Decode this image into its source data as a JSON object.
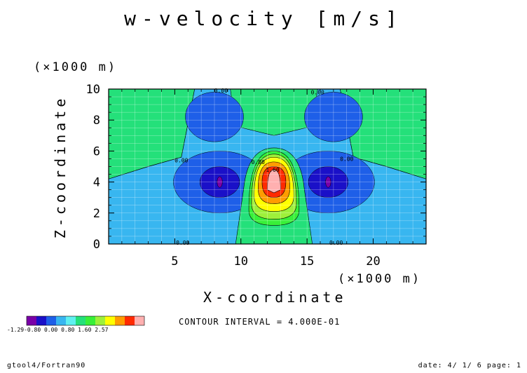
{
  "title": "w-velocity [m/s]",
  "y_unit": "(×1000 m)",
  "x_unit": "(×1000 m)",
  "contour_interval": "CONTOUR INTERVAL = 4.000E-01",
  "footer_left": "gtool4/Fortran90",
  "footer_right": "date: 4/ 1/ 6 page: 1",
  "legend_ticks": "-1.29-0.80 0.00 0.80 1.60    2.57",
  "chart_data": {
    "type": "heatmap",
    "subtype": "filled-contour",
    "title": "w-velocity [m/s]",
    "xlabel": "X-coordinate",
    "ylabel": "Z-coordinate",
    "xlim": [
      0,
      24
    ],
    "ylim": [
      0,
      10
    ],
    "x_ticks": [
      5,
      10,
      15,
      20
    ],
    "y_ticks": [
      0,
      2,
      4,
      6,
      8,
      10
    ],
    "x_tick_labels": [
      "5",
      "10",
      "15",
      "20"
    ],
    "y_tick_labels": [
      "0",
      "2",
      "4",
      "6",
      "8",
      "10"
    ],
    "grid": true,
    "contour_interval": 0.4,
    "legend": {
      "position": "bottom-left",
      "colors": [
        "#7a00a8",
        "#1a10c8",
        "#1e5fe8",
        "#38b6f0",
        "#5ff0f0",
        "#24e07a",
        "#38ef38",
        "#9ef03a",
        "#ffff00",
        "#ff9c00",
        "#ff2a00",
        "#ffb0b0"
      ],
      "labels": [
        "-1.29",
        "-0.80",
        "0.00",
        "0.80",
        "1.60",
        "2.57"
      ]
    },
    "contour_labels": [
      {
        "x": 5.5,
        "y": 5.4,
        "text": "0.00"
      },
      {
        "x": 8.5,
        "y": 9.9,
        "text": "0.00"
      },
      {
        "x": 15.8,
        "y": 9.8,
        "text": "0.00"
      },
      {
        "x": 18.0,
        "y": 5.5,
        "text": "0.00"
      },
      {
        "x": 5.6,
        "y": 0.1,
        "text": "0.00"
      },
      {
        "x": 17.2,
        "y": 0.1,
        "text": "0.00"
      },
      {
        "x": 11.3,
        "y": 5.3,
        "text": "0.80"
      },
      {
        "x": 12.4,
        "y": 4.8,
        "text": "1.60"
      }
    ],
    "features": [
      {
        "kind": "maximum",
        "x": 12.5,
        "z": 4.0,
        "value": 2.57
      },
      {
        "kind": "minimum",
        "x": 8.4,
        "z": 4.0,
        "value": -1.29
      },
      {
        "kind": "minimum",
        "x": 16.6,
        "z": 4.0,
        "value": -1.29
      },
      {
        "kind": "minimum",
        "x": 8.0,
        "z": 8.2,
        "value": -0.8
      },
      {
        "kind": "minimum",
        "x": 17.0,
        "z": 8.2,
        "value": -0.8
      },
      {
        "kind": "positive-lobe",
        "x": 12.5,
        "z": 8.5,
        "value": 0.4
      },
      {
        "kind": "positive-region",
        "x": 2.5,
        "z": 8.0,
        "value": 0.4
      },
      {
        "kind": "positive-region",
        "x": 22.0,
        "z": 8.0,
        "value": 0.4
      }
    ]
  }
}
